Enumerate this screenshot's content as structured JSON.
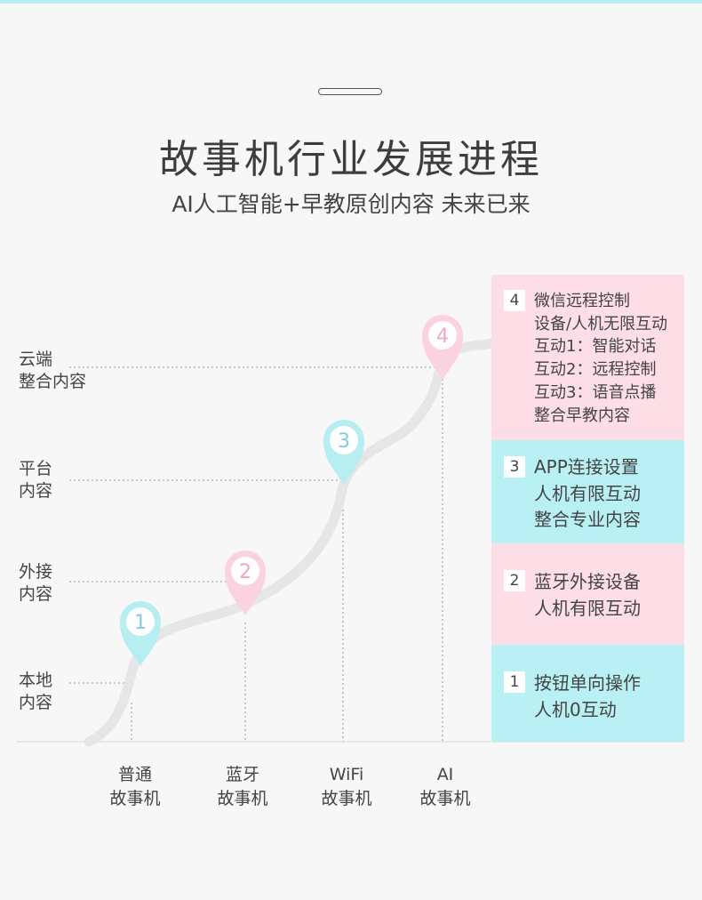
{
  "header": {
    "title": "故事机行业发展进程",
    "subtitle": "AI人工智能+早教原创内容  未来已来"
  },
  "y_levels": [
    {
      "line1": "云端",
      "line2": "整合内容"
    },
    {
      "line1": "平台",
      "line2": "内容"
    },
    {
      "line1": "外接",
      "line2": "内容"
    },
    {
      "line1": "本地",
      "line2": "内容"
    }
  ],
  "x_stages": [
    {
      "line1": "普通",
      "line2": "故事机"
    },
    {
      "line1": "蓝牙",
      "line2": "故事机"
    },
    {
      "line1": "WiFi",
      "line2": "故事机"
    },
    {
      "line1": "AI",
      "line2": "故事机"
    }
  ],
  "markers": [
    {
      "num": "1",
      "color": "#b6eef2"
    },
    {
      "num": "2",
      "color": "#fbd3de"
    },
    {
      "num": "3",
      "color": "#b6eef2"
    },
    {
      "num": "4",
      "color": "#fbd3de"
    }
  ],
  "panels": [
    {
      "num": "4",
      "color": "pink",
      "lines": [
        "微信远程控制",
        "设备/人机无限互动",
        "互动1：智能对话",
        "互动2：远程控制",
        "互动3：语音点播",
        "整合早教内容"
      ]
    },
    {
      "num": "3",
      "color": "cyan",
      "lines": [
        "APP连接设置",
        "人机有限互动",
        "整合专业内容"
      ]
    },
    {
      "num": "2",
      "color": "pink",
      "lines": [
        "蓝牙外接设备",
        "人机有限互动"
      ]
    },
    {
      "num": "1",
      "color": "cyan",
      "lines": [
        "按钮单向操作",
        "人机0互动"
      ]
    }
  ],
  "colors": {
    "cyan": "#b8f0f4",
    "pink": "#fddde6",
    "curve": "#e6e6e6",
    "pin_text_cyan": "#7ccfdb",
    "pin_text_pink": "#f0a8bd"
  }
}
